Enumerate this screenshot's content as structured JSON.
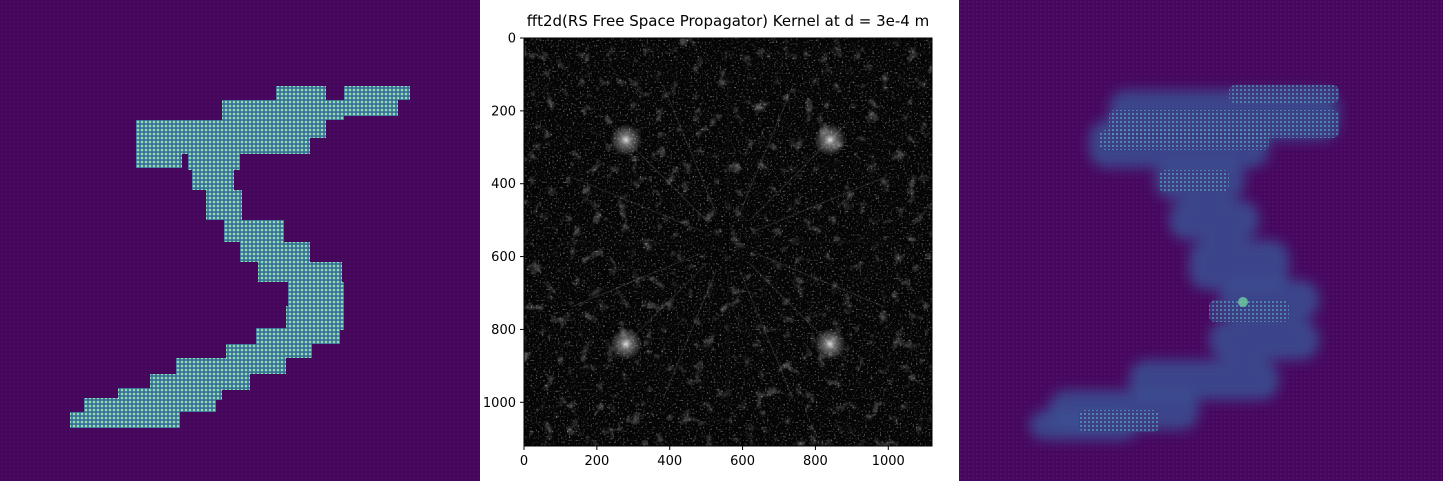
{
  "figure": {
    "panels": [
      {
        "name": "left",
        "type": "heatmap",
        "colormap": "viridis",
        "content": "input intensity field, digit-like shape"
      },
      {
        "name": "middle",
        "type": "heatmap",
        "colormap": "gray"
      },
      {
        "name": "right",
        "type": "heatmap",
        "colormap": "viridis",
        "content": "propagated/reconstructed intensity field"
      }
    ]
  },
  "chart_data": [
    {
      "type": "heatmap",
      "title": "",
      "xlabel": "",
      "ylabel": "",
      "colormap": "viridis",
      "axes": "off",
      "background_color": "#440154",
      "highlight_color": "#5ec962"
    },
    {
      "type": "heatmap",
      "title": "fft2d(RS Free Space Propagator) Kernel at d = 3e-4 m",
      "xlabel": "",
      "ylabel": "",
      "colormap": "gray",
      "xlim": [
        0,
        1120
      ],
      "ylim": [
        1120,
        0
      ],
      "x_ticks": [
        0,
        200,
        400,
        600,
        800,
        1000
      ],
      "y_ticks": [
        0,
        200,
        400,
        600,
        800,
        1000
      ],
      "x_tick_labels": [
        "0",
        "200",
        "400",
        "600",
        "800",
        "1000"
      ],
      "y_tick_labels": [
        "0",
        "200",
        "400",
        "600",
        "800",
        "1000"
      ],
      "symmetry": "four-fold mirror about center (560, 560)",
      "bright_spots": [
        {
          "x": 280,
          "y": 280
        },
        {
          "x": 840,
          "y": 280
        },
        {
          "x": 280,
          "y": 840
        },
        {
          "x": 840,
          "y": 840
        }
      ]
    },
    {
      "type": "heatmap",
      "title": "",
      "xlabel": "",
      "ylabel": "",
      "colormap": "viridis",
      "axes": "off",
      "background_color": "#46065f"
    }
  ]
}
